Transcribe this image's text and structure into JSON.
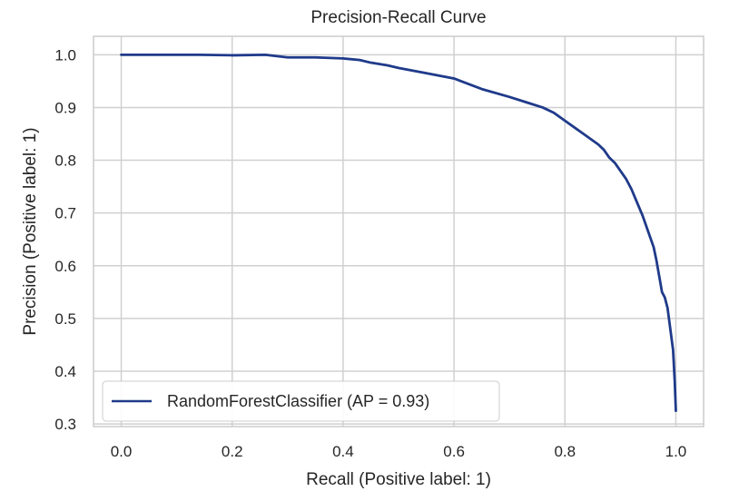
{
  "chart_data": {
    "type": "line",
    "title": "Precision-Recall Curve",
    "xlabel": "Recall (Positive label: 1)",
    "ylabel": "Precision (Positive label: 1)",
    "xlim": [
      -0.05,
      1.05
    ],
    "ylim": [
      0.295,
      1.035
    ],
    "xticks": [
      "0.0",
      "0.2",
      "0.4",
      "0.6",
      "0.8",
      "1.0"
    ],
    "yticks": [
      "0.3",
      "0.4",
      "0.5",
      "0.6",
      "0.7",
      "0.8",
      "0.9",
      "1.0"
    ],
    "grid": true,
    "legend": "lower-left",
    "series": [
      {
        "name": "RandomForestClassifier (AP = 0.93)",
        "color": "#1f3a8a",
        "x": [
          0.0,
          0.14,
          0.2,
          0.26,
          0.3,
          0.35,
          0.4,
          0.43,
          0.45,
          0.48,
          0.5,
          0.55,
          0.6,
          0.65,
          0.7,
          0.73,
          0.76,
          0.78,
          0.8,
          0.82,
          0.84,
          0.86,
          0.87,
          0.88,
          0.89,
          0.9,
          0.91,
          0.92,
          0.93,
          0.94,
          0.95,
          0.96,
          0.965,
          0.97,
          0.975,
          0.98,
          0.985,
          0.99,
          0.995,
          0.998,
          1.0
        ],
        "y": [
          1.0,
          1.0,
          0.999,
          1.0,
          0.995,
          0.995,
          0.993,
          0.99,
          0.985,
          0.98,
          0.975,
          0.965,
          0.955,
          0.935,
          0.92,
          0.91,
          0.9,
          0.89,
          0.875,
          0.86,
          0.845,
          0.83,
          0.82,
          0.805,
          0.795,
          0.78,
          0.765,
          0.745,
          0.72,
          0.695,
          0.665,
          0.635,
          0.61,
          0.58,
          0.55,
          0.54,
          0.52,
          0.48,
          0.44,
          0.38,
          0.325
        ]
      }
    ]
  }
}
